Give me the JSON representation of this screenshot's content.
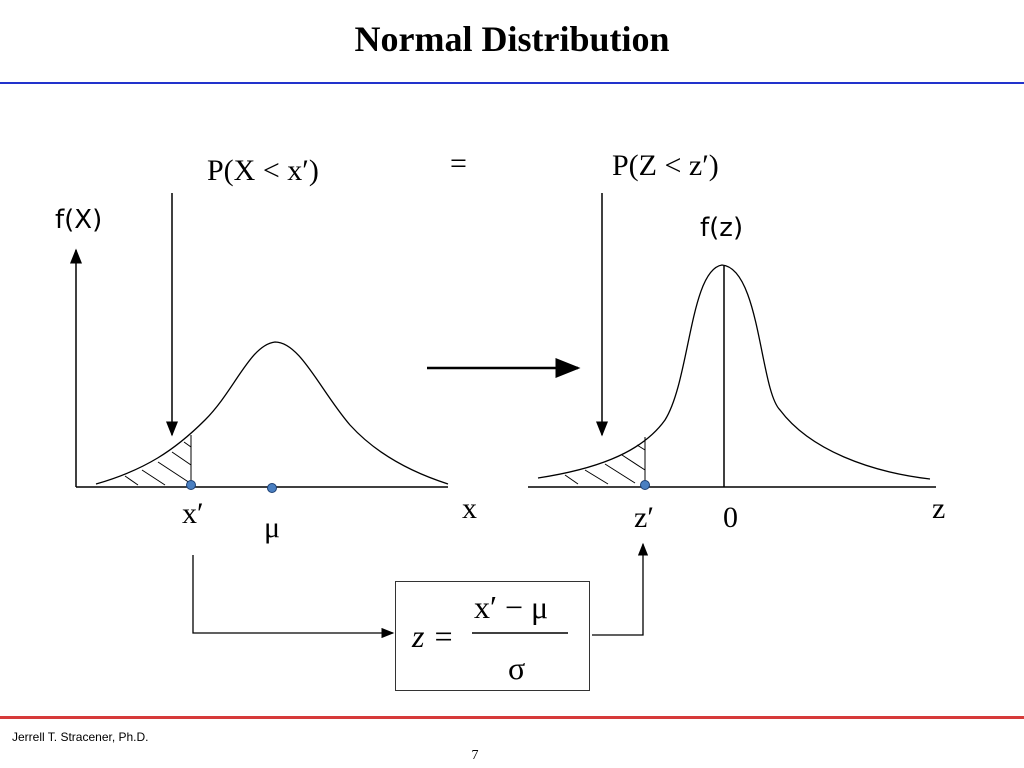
{
  "slide": {
    "title": "Normal Distribution",
    "footer_author": "Jerrell T. Stracener, Ph.D.",
    "page_number": "7"
  },
  "left_plot": {
    "y_label": "f(X)",
    "x_label": "x",
    "x_prime_label": "x′",
    "mu_label": "μ",
    "prob_label": "P(X < x′)"
  },
  "right_plot": {
    "y_label": "f(z)",
    "x_label": "z",
    "z_prime_label": "z′",
    "zero_label": "0",
    "prob_label": "P(Z < z′)"
  },
  "equals_label": "=",
  "formula": {
    "lhs": "z =",
    "numerator": "x′ − μ",
    "denominator": "σ"
  },
  "colors": {
    "title_rule": "#2233cc",
    "footer_rule": "#d63a3a",
    "marker_fill": "#4a7fc1"
  }
}
